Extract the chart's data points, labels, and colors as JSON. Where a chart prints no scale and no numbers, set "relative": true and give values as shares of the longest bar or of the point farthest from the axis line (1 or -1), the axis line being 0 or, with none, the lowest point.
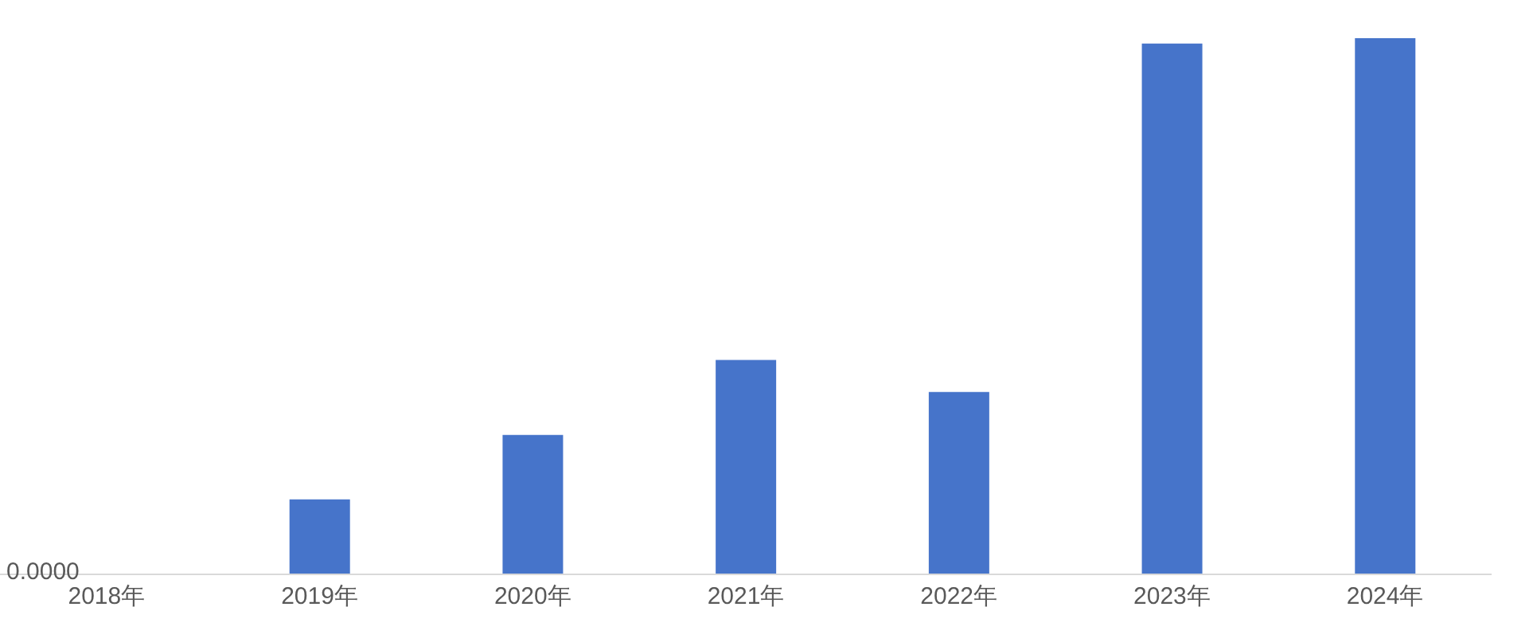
{
  "chart_data": {
    "type": "bar",
    "relative": true,
    "categories": [
      "2018年",
      "2019年",
      "2020年",
      "2021年",
      "2022年",
      "2023年",
      "2024年"
    ],
    "values": [
      0,
      0.14,
      0.26,
      0.4,
      0.34,
      0.99,
      1
    ],
    "color": "#4674ca",
    "annotations": [
      "0.0000"
    ],
    "grid": false,
    "legend": false
  }
}
